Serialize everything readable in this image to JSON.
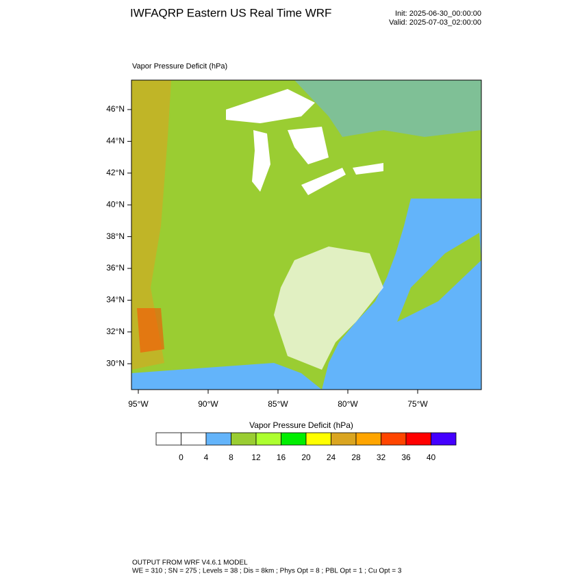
{
  "header": {
    "title": "IWFAQRP Eastern US Real Time WRF",
    "init": "Init: 2025-06-30_00:00:00",
    "valid": "Valid: 2025-07-03_02:00:00"
  },
  "map": {
    "label": "Vapor Pressure Deficit   (hPa)",
    "lat_labels": [
      "46°N",
      "44°N",
      "42°N",
      "40°N",
      "38°N",
      "36°N",
      "34°N",
      "32°N",
      "30°N"
    ],
    "lon_labels": [
      "95°W",
      "90°W",
      "85°W",
      "80°W",
      "75°W"
    ]
  },
  "colorbar": {
    "title": "Vapor Pressure Deficit  (hPa)",
    "ticks": [
      0,
      4,
      8,
      12,
      16,
      20,
      24,
      28,
      32,
      36,
      40
    ],
    "colors": [
      "#ffffff",
      "#ffffff",
      "#63b4fa",
      "#9acd32",
      "#adff2f",
      "#00ee00",
      "#ffff00",
      "#daa520",
      "#ffa500",
      "#ff4500",
      "#ff0000",
      "#4400ff"
    ]
  },
  "footer": {
    "line1": "OUTPUT FROM WRF V4.6.1 MODEL",
    "line2": "WE = 310 ; SN = 275 ; Levels = 38 ; Dis = 8km ; Phys Opt = 8 ; PBL Opt = 1 ; Cu Opt = 3"
  }
}
